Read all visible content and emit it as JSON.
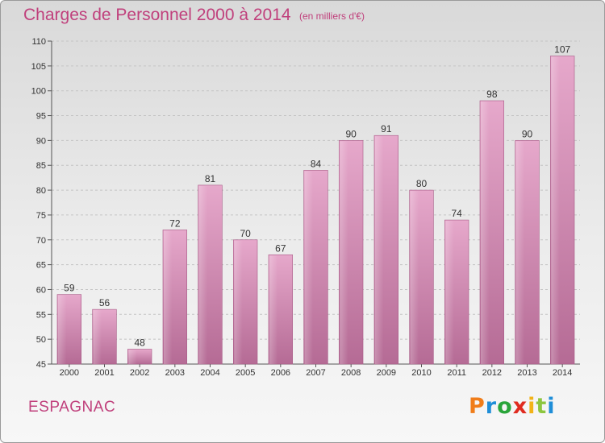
{
  "chart_data": {
    "type": "bar",
    "title": "Charges de Personnel 2000 à 2014",
    "subtitle": "(en milliers d'€)",
    "categories": [
      "2000",
      "2001",
      "2002",
      "2003",
      "2004",
      "2005",
      "2006",
      "2007",
      "2008",
      "2009",
      "2010",
      "2011",
      "2012",
      "2013",
      "2014"
    ],
    "values": [
      59,
      56,
      48,
      72,
      81,
      70,
      67,
      84,
      90,
      91,
      80,
      74,
      98,
      90,
      107
    ],
    "ylim": [
      45,
      110
    ],
    "yticks": [
      45,
      50,
      55,
      60,
      65,
      70,
      75,
      80,
      85,
      90,
      95,
      100,
      105,
      110
    ],
    "grid": true,
    "bar_color": "#d98ab4"
  },
  "footer": {
    "city": "ESPAGNAC"
  },
  "logo": {
    "letters": [
      "P",
      "r",
      "o",
      "x",
      "i",
      "t",
      "i"
    ],
    "colors": [
      "#f07d1a",
      "#1f8ed8",
      "#2aa53a",
      "#e02b20",
      "#f2b318",
      "#8dc63f",
      "#1f8ed8"
    ]
  }
}
